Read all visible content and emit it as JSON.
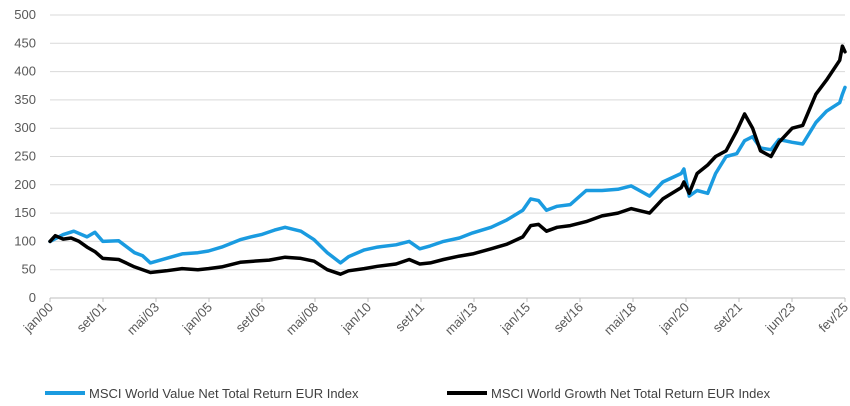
{
  "chart_data": {
    "type": "line",
    "ylim": [
      0,
      500
    ],
    "yticks": [
      0,
      50,
      100,
      150,
      200,
      250,
      300,
      350,
      400,
      450,
      500
    ],
    "xticks": [
      "jan/00",
      "set/01",
      "mai/03",
      "jan/05",
      "set/06",
      "mai/08",
      "jan/10",
      "set/11",
      "mai/13",
      "jan/15",
      "set/16",
      "mai/18",
      "jan/20",
      "set/21",
      "jun/23",
      "fev/25"
    ],
    "grid": true,
    "legend_position": "bottom",
    "series": [
      {
        "name": "MSCI World Value Net Total Return EUR Index",
        "color": "#1a9be0",
        "points": [
          [
            "2000-01",
            100
          ],
          [
            "2000-06",
            112
          ],
          [
            "2000-10",
            118
          ],
          [
            "2001-03",
            108
          ],
          [
            "2001-06",
            116
          ],
          [
            "2001-09",
            100
          ],
          [
            "2002-03",
            101
          ],
          [
            "2002-09",
            80
          ],
          [
            "2002-12",
            75
          ],
          [
            "2003-03",
            62
          ],
          [
            "2003-09",
            70
          ],
          [
            "2004-03",
            78
          ],
          [
            "2004-09",
            80
          ],
          [
            "2005-01",
            83
          ],
          [
            "2005-06",
            90
          ],
          [
            "2006-01",
            103
          ],
          [
            "2006-05",
            108
          ],
          [
            "2006-09",
            112
          ],
          [
            "2007-02",
            120
          ],
          [
            "2007-06",
            125
          ],
          [
            "2007-12",
            118
          ],
          [
            "2008-05",
            103
          ],
          [
            "2008-10",
            80
          ],
          [
            "2009-03",
            62
          ],
          [
            "2009-06",
            73
          ],
          [
            "2009-12",
            85
          ],
          [
            "2010-05",
            90
          ],
          [
            "2010-12",
            94
          ],
          [
            "2011-05",
            100
          ],
          [
            "2011-09",
            87
          ],
          [
            "2012-01",
            92
          ],
          [
            "2012-06",
            100
          ],
          [
            "2012-12",
            106
          ],
          [
            "2013-05",
            115
          ],
          [
            "2013-12",
            125
          ],
          [
            "2014-06",
            138
          ],
          [
            "2014-12",
            155
          ],
          [
            "2015-03",
            175
          ],
          [
            "2015-06",
            172
          ],
          [
            "2015-09",
            155
          ],
          [
            "2016-01",
            162
          ],
          [
            "2016-06",
            165
          ],
          [
            "2016-12",
            190
          ],
          [
            "2017-06",
            190
          ],
          [
            "2017-12",
            192
          ],
          [
            "2018-05",
            198
          ],
          [
            "2018-12",
            180
          ],
          [
            "2019-05",
            205
          ],
          [
            "2019-12",
            220
          ],
          [
            "2020-01",
            228
          ],
          [
            "2020-03",
            180
          ],
          [
            "2020-06",
            190
          ],
          [
            "2020-10",
            185
          ],
          [
            "2021-01",
            220
          ],
          [
            "2021-05",
            250
          ],
          [
            "2021-09",
            255
          ],
          [
            "2021-12",
            278
          ],
          [
            "2022-03",
            285
          ],
          [
            "2022-06",
            265
          ],
          [
            "2022-10",
            262
          ],
          [
            "2023-01",
            280
          ],
          [
            "2023-06",
            275
          ],
          [
            "2023-10",
            272
          ],
          [
            "2024-03",
            310
          ],
          [
            "2024-07",
            330
          ],
          [
            "2024-12",
            345
          ],
          [
            "2025-01",
            360
          ],
          [
            "2025-02",
            372
          ]
        ]
      },
      {
        "name": "MSCI World Growth Net Total Return EUR Index",
        "color": "#000000",
        "points": [
          [
            "2000-01",
            100
          ],
          [
            "2000-03",
            110
          ],
          [
            "2000-06",
            104
          ],
          [
            "2000-09",
            106
          ],
          [
            "2000-12",
            100
          ],
          [
            "2001-03",
            90
          ],
          [
            "2001-06",
            82
          ],
          [
            "2001-09",
            70
          ],
          [
            "2002-03",
            68
          ],
          [
            "2002-09",
            55
          ],
          [
            "2003-03",
            45
          ],
          [
            "2003-09",
            48
          ],
          [
            "2004-03",
            52
          ],
          [
            "2004-09",
            50
          ],
          [
            "2005-01",
            52
          ],
          [
            "2005-06",
            55
          ],
          [
            "2006-01",
            63
          ],
          [
            "2006-06",
            65
          ],
          [
            "2006-12",
            67
          ],
          [
            "2007-06",
            72
          ],
          [
            "2007-12",
            70
          ],
          [
            "2008-05",
            65
          ],
          [
            "2008-10",
            50
          ],
          [
            "2009-03",
            42
          ],
          [
            "2009-06",
            48
          ],
          [
            "2009-12",
            52
          ],
          [
            "2010-05",
            56
          ],
          [
            "2010-12",
            60
          ],
          [
            "2011-05",
            68
          ],
          [
            "2011-09",
            60
          ],
          [
            "2012-01",
            62
          ],
          [
            "2012-06",
            68
          ],
          [
            "2012-12",
            74
          ],
          [
            "2013-05",
            78
          ],
          [
            "2013-12",
            87
          ],
          [
            "2014-06",
            95
          ],
          [
            "2014-12",
            108
          ],
          [
            "2015-03",
            128
          ],
          [
            "2015-06",
            130
          ],
          [
            "2015-09",
            118
          ],
          [
            "2016-01",
            125
          ],
          [
            "2016-06",
            128
          ],
          [
            "2016-12",
            135
          ],
          [
            "2017-06",
            145
          ],
          [
            "2017-12",
            150
          ],
          [
            "2018-05",
            158
          ],
          [
            "2018-12",
            150
          ],
          [
            "2019-05",
            175
          ],
          [
            "2019-12",
            195
          ],
          [
            "2020-01",
            205
          ],
          [
            "2020-03",
            185
          ],
          [
            "2020-06",
            220
          ],
          [
            "2020-10",
            235
          ],
          [
            "2021-01",
            250
          ],
          [
            "2021-05",
            260
          ],
          [
            "2021-09",
            295
          ],
          [
            "2021-12",
            325
          ],
          [
            "2022-03",
            300
          ],
          [
            "2022-06",
            260
          ],
          [
            "2022-10",
            250
          ],
          [
            "2023-01",
            275
          ],
          [
            "2023-06",
            300
          ],
          [
            "2023-10",
            305
          ],
          [
            "2024-03",
            360
          ],
          [
            "2024-07",
            385
          ],
          [
            "2024-12",
            420
          ],
          [
            "2025-01",
            445
          ],
          [
            "2025-02",
            435
          ]
        ]
      }
    ]
  }
}
